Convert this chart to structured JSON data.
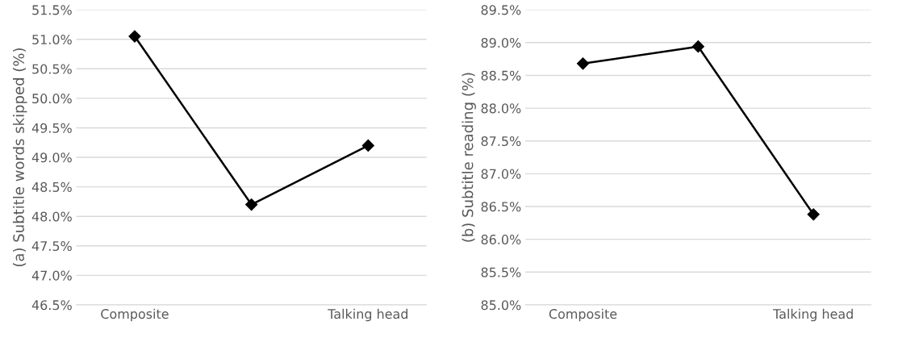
{
  "chart_data": [
    {
      "type": "line",
      "ylabel": "(a) Subtitle words skipped (%)",
      "categories": [
        "Composite",
        null,
        "Talking head"
      ],
      "series": [
        {
          "color": "#000000",
          "values": [
            51.05,
            48.2,
            49.2
          ]
        }
      ],
      "ylim": [
        46.5,
        51.5
      ],
      "yticks": [
        {
          "value": 46.5,
          "label": "46.5%"
        },
        {
          "value": 47.0,
          "label": "47.0%"
        },
        {
          "value": 47.5,
          "label": "47.5%"
        },
        {
          "value": 48.0,
          "label": "48.0%"
        },
        {
          "value": 48.5,
          "label": "48.5%"
        },
        {
          "value": 49.0,
          "label": "49.0%"
        },
        {
          "value": 49.5,
          "label": "49.5%"
        },
        {
          "value": 50.0,
          "label": "50.0%"
        },
        {
          "value": 50.5,
          "label": "50.5%"
        },
        {
          "value": 51.0,
          "label": "51.0%"
        },
        {
          "value": 51.5,
          "label": "51.5%"
        }
      ],
      "grid": "y",
      "marker": "diamond",
      "line_style": "solid",
      "legend": false
    },
    {
      "type": "line",
      "ylabel": "(b) Subtitle reading (%)",
      "categories": [
        "Composite",
        null,
        "Talking head"
      ],
      "series": [
        {
          "color": "#000000",
          "values": [
            88.68,
            88.94,
            86.38
          ]
        }
      ],
      "ylim": [
        85.0,
        89.5
      ],
      "yticks": [
        {
          "value": 85.0,
          "label": "85.0%"
        },
        {
          "value": 85.5,
          "label": "85.5%"
        },
        {
          "value": 86.0,
          "label": "86.0%"
        },
        {
          "value": 86.5,
          "label": "86.5%"
        },
        {
          "value": 87.0,
          "label": "87.0%"
        },
        {
          "value": 87.5,
          "label": "87.5%"
        },
        {
          "value": 88.0,
          "label": "88.0%"
        },
        {
          "value": 88.5,
          "label": "88.5%"
        },
        {
          "value": 89.0,
          "label": "89.0%"
        },
        {
          "value": 89.5,
          "label": "89.5%"
        }
      ],
      "grid": "y",
      "marker": "diamond",
      "line_style": "solid",
      "legend": false
    }
  ]
}
